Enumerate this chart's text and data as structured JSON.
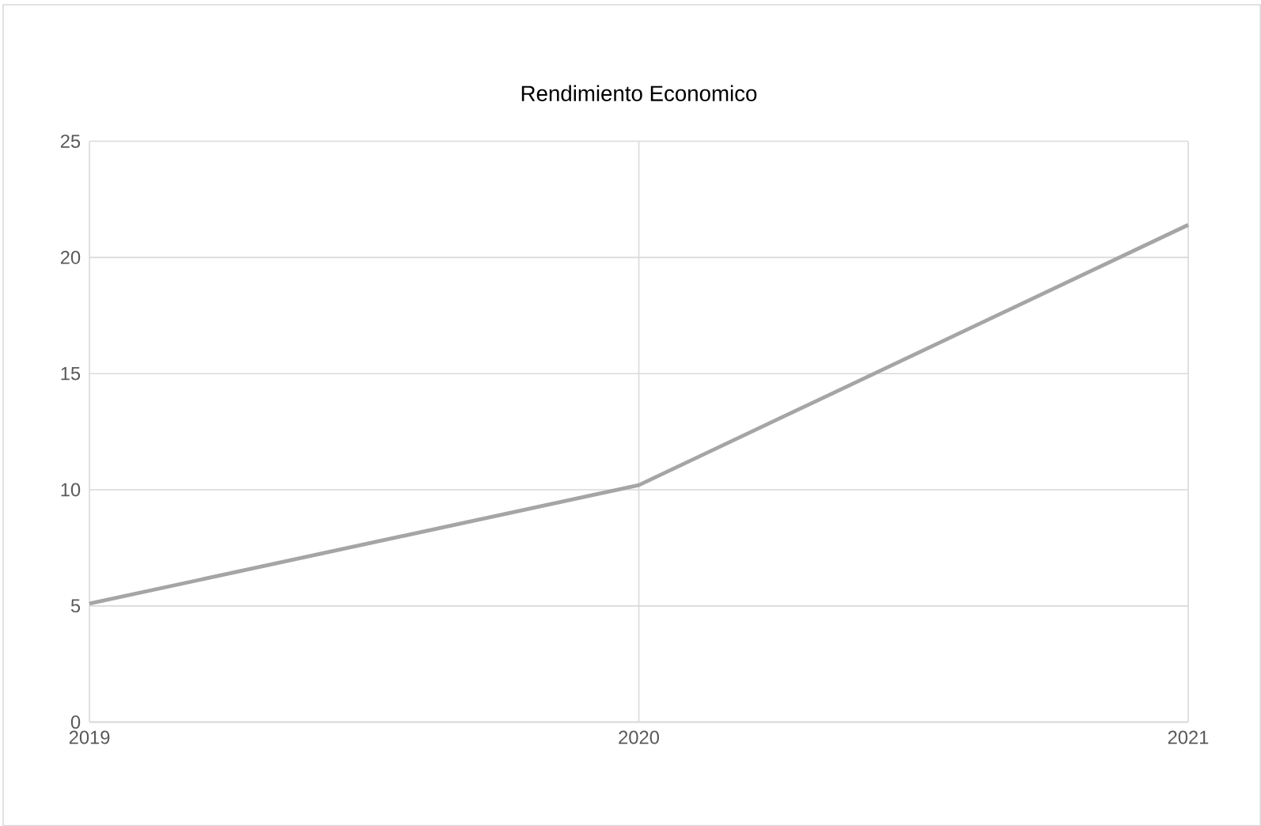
{
  "chart_data": {
    "type": "line",
    "title": "Rendimiento Economico",
    "categories": [
      "2019",
      "2020",
      "2021"
    ],
    "series": [
      {
        "color": "#a5a5a5",
        "values": [
          5.1,
          10.2,
          21.4
        ]
      }
    ],
    "ylim": [
      0,
      25
    ],
    "yticks": [
      0,
      5,
      10,
      15,
      20,
      25
    ],
    "grid": true,
    "marker": "none",
    "line_style": "solid"
  }
}
